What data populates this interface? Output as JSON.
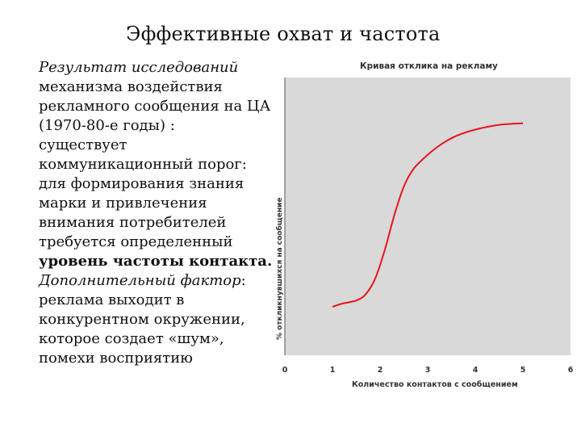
{
  "slide": {
    "title": "Эффективные охват и частота",
    "p1_italic": "Результат исследований",
    "p1_rest": "механизма воздействия рекламного сообщения на ЦА (1970-80-е годы) :",
    "p2": "существует коммуникационный порог: для формирования знания марки и привлечения внимания потребителей требуется определенный",
    "p2_bold": "уровень частоты контакта.",
    "p3_italic": "Дополнительный фактор",
    "p3_rest": ": реклама выходит в конкурентном окружении, которое создает «шум», помехи восприятию"
  },
  "chart_data": {
    "type": "line",
    "title": "Кривая отклика на рекламу",
    "xlabel": "Количество контактов с сообщением",
    "ylabel": "% откликнувшихся на сообщение",
    "xlim": [
      0,
      6
    ],
    "x_ticks": [
      "0",
      "1",
      "2",
      "3",
      "4",
      "5",
      "6"
    ],
    "grid": false,
    "series": [
      {
        "color": "#e8141b",
        "points": [
          [
            1.0,
            0.0
          ],
          [
            1.2,
            0.02
          ],
          [
            1.5,
            0.04
          ],
          [
            1.7,
            0.08
          ],
          [
            1.9,
            0.18
          ],
          [
            2.1,
            0.36
          ],
          [
            2.3,
            0.58
          ],
          [
            2.5,
            0.76
          ],
          [
            2.7,
            0.87
          ],
          [
            3.0,
            0.96
          ],
          [
            3.3,
            1.03
          ],
          [
            3.6,
            1.08
          ],
          [
            4.0,
            1.12
          ],
          [
            4.5,
            1.15
          ],
          [
            5.0,
            1.16
          ]
        ]
      }
    ]
  },
  "colors": {
    "plot_bg": "#d9d9d9",
    "line": "#e8141b",
    "axis": "#555555"
  }
}
